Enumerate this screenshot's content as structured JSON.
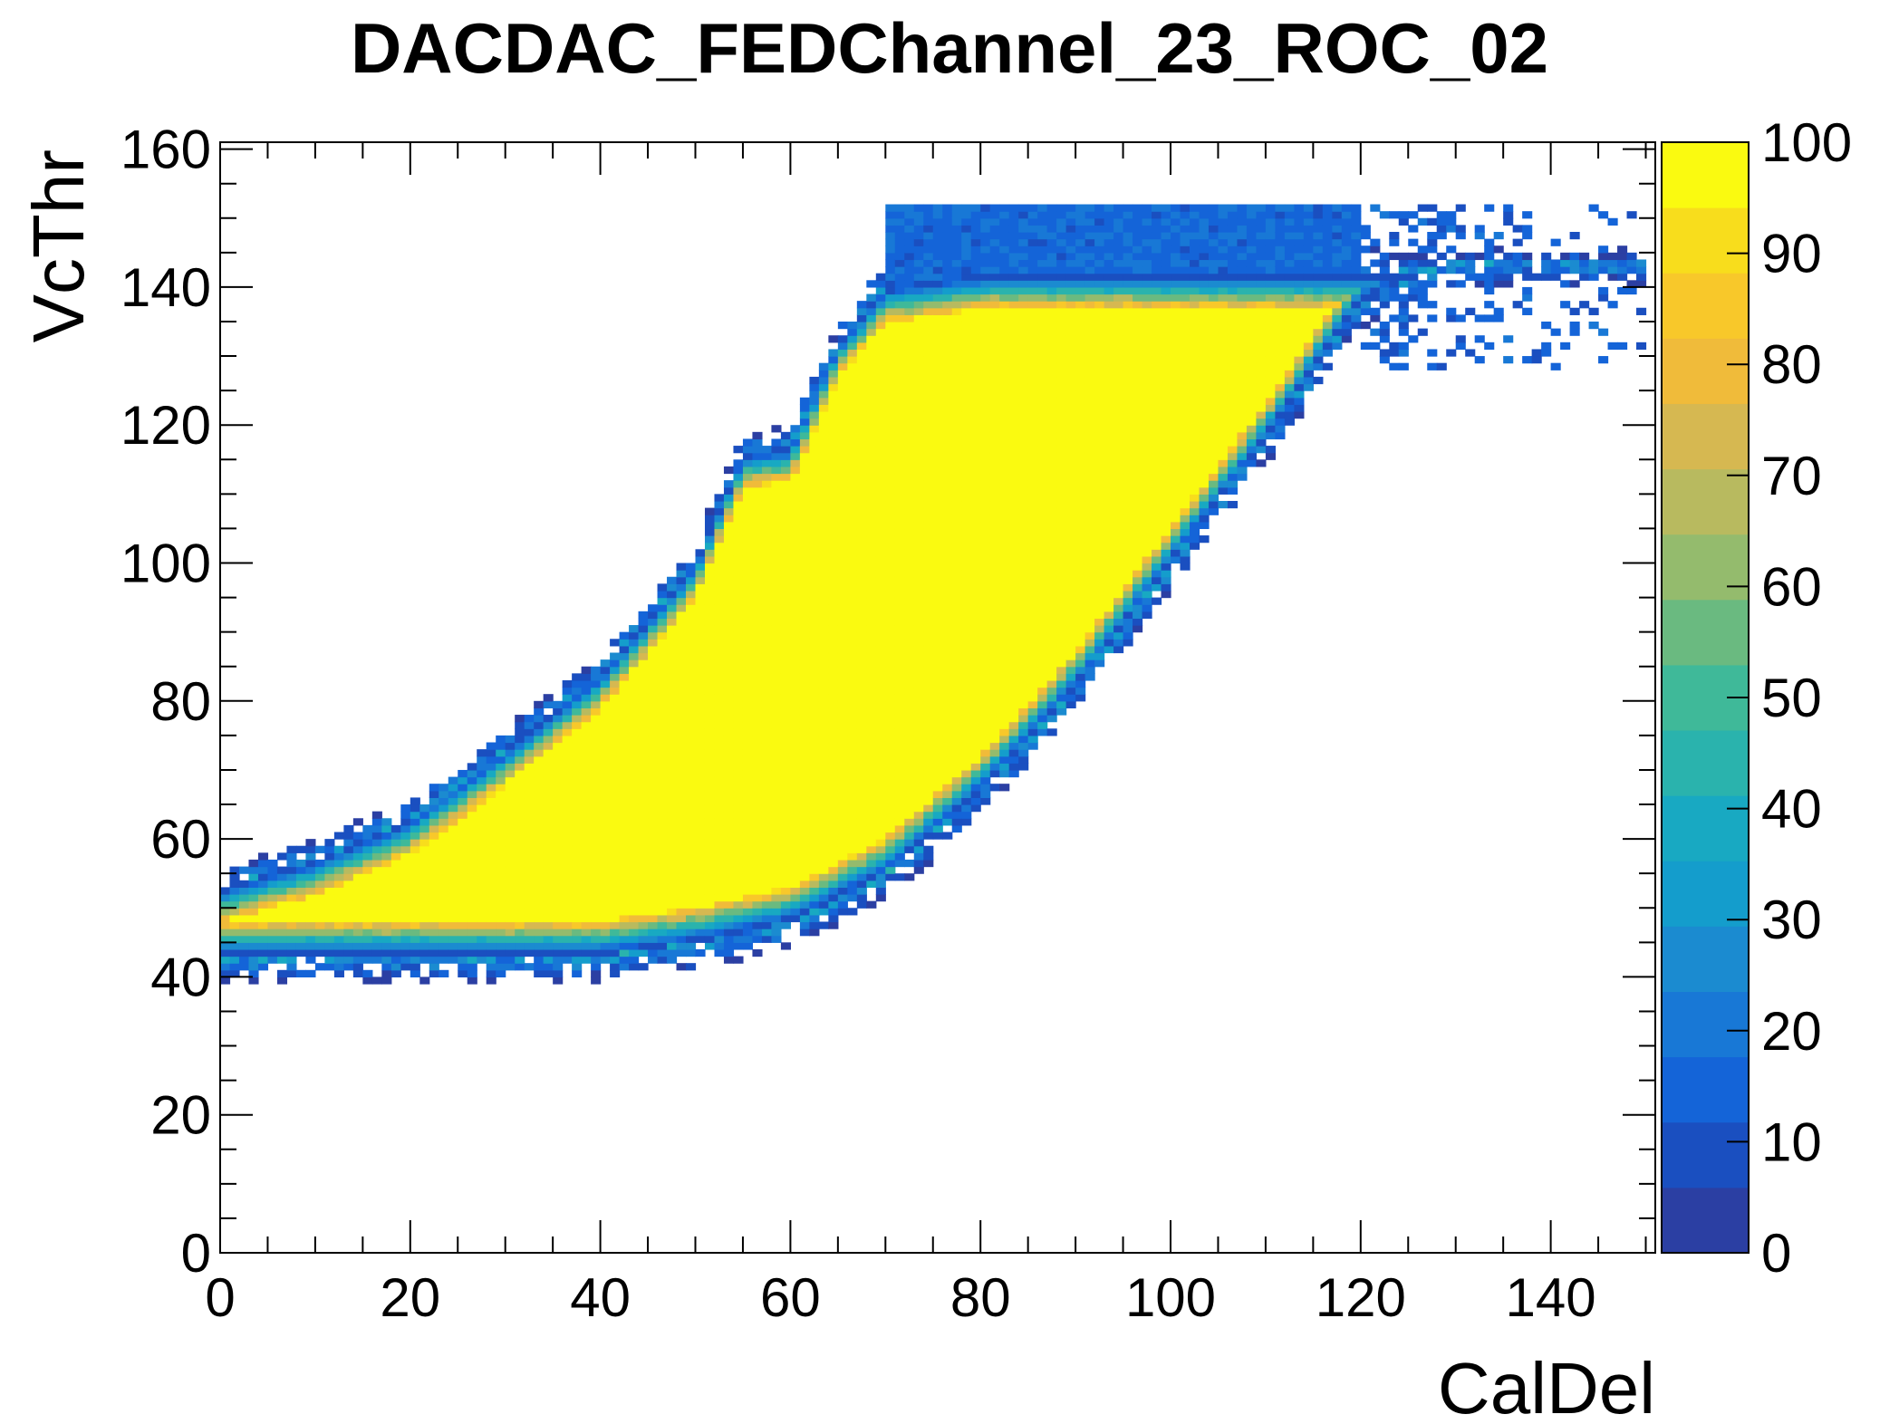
{
  "chart_data": {
    "type": "heatmap",
    "title": "DACDAC_FEDChannel_23_ROC_02",
    "xlabel": "CalDel",
    "ylabel": "VcThr",
    "xlim": [
      0,
      151
    ],
    "ylim": [
      0,
      161
    ],
    "x_ticks": [
      0,
      20,
      40,
      60,
      80,
      100,
      120,
      140
    ],
    "y_ticks": [
      0,
      20,
      40,
      60,
      80,
      100,
      120,
      140,
      160
    ],
    "z_range": [
      0,
      100
    ],
    "z_ticks": [
      0,
      10,
      20,
      30,
      40,
      50,
      60,
      70,
      80,
      90,
      100
    ],
    "palette": [
      "#2b3fa3",
      "#1a4fc0",
      "#1464d8",
      "#1878d6",
      "#1b8bd0",
      "#149dcc",
      "#18a9c2",
      "#2ab3ad",
      "#3fb999",
      "#6aba80",
      "#94bb6d",
      "#b8ba5f",
      "#d6b851",
      "#f0bb3a",
      "#f8c82a",
      "#f8dd1c",
      "#fafa10"
    ],
    "grid": false,
    "legend": "colorbar-right",
    "efficiency_map": {
      "lower_edge_vcthr": [
        [
          0,
          43
        ],
        [
          20,
          43
        ],
        [
          40,
          43
        ],
        [
          50,
          45
        ],
        [
          60,
          48
        ],
        [
          70,
          55
        ],
        [
          80,
          67
        ],
        [
          90,
          82
        ],
        [
          100,
          100
        ],
        [
          110,
          118
        ],
        [
          120,
          138
        ],
        [
          130,
          144
        ],
        [
          150,
          144
        ]
      ],
      "upper_edge_vcthr": [
        [
          0,
          53
        ],
        [
          10,
          57
        ],
        [
          20,
          63
        ],
        [
          30,
          73
        ],
        [
          40,
          84
        ],
        [
          50,
          100
        ],
        [
          55,
          116
        ],
        [
          60,
          117
        ],
        [
          65,
          132
        ],
        [
          70,
          140
        ],
        [
          80,
          142
        ],
        [
          100,
          142
        ],
        [
          120,
          142
        ],
        [
          150,
          142
        ]
      ],
      "high_threshold_band_vcthr": [
        140,
        152
      ],
      "high_threshold_band_level": 20,
      "plateau_level": 100
    }
  }
}
